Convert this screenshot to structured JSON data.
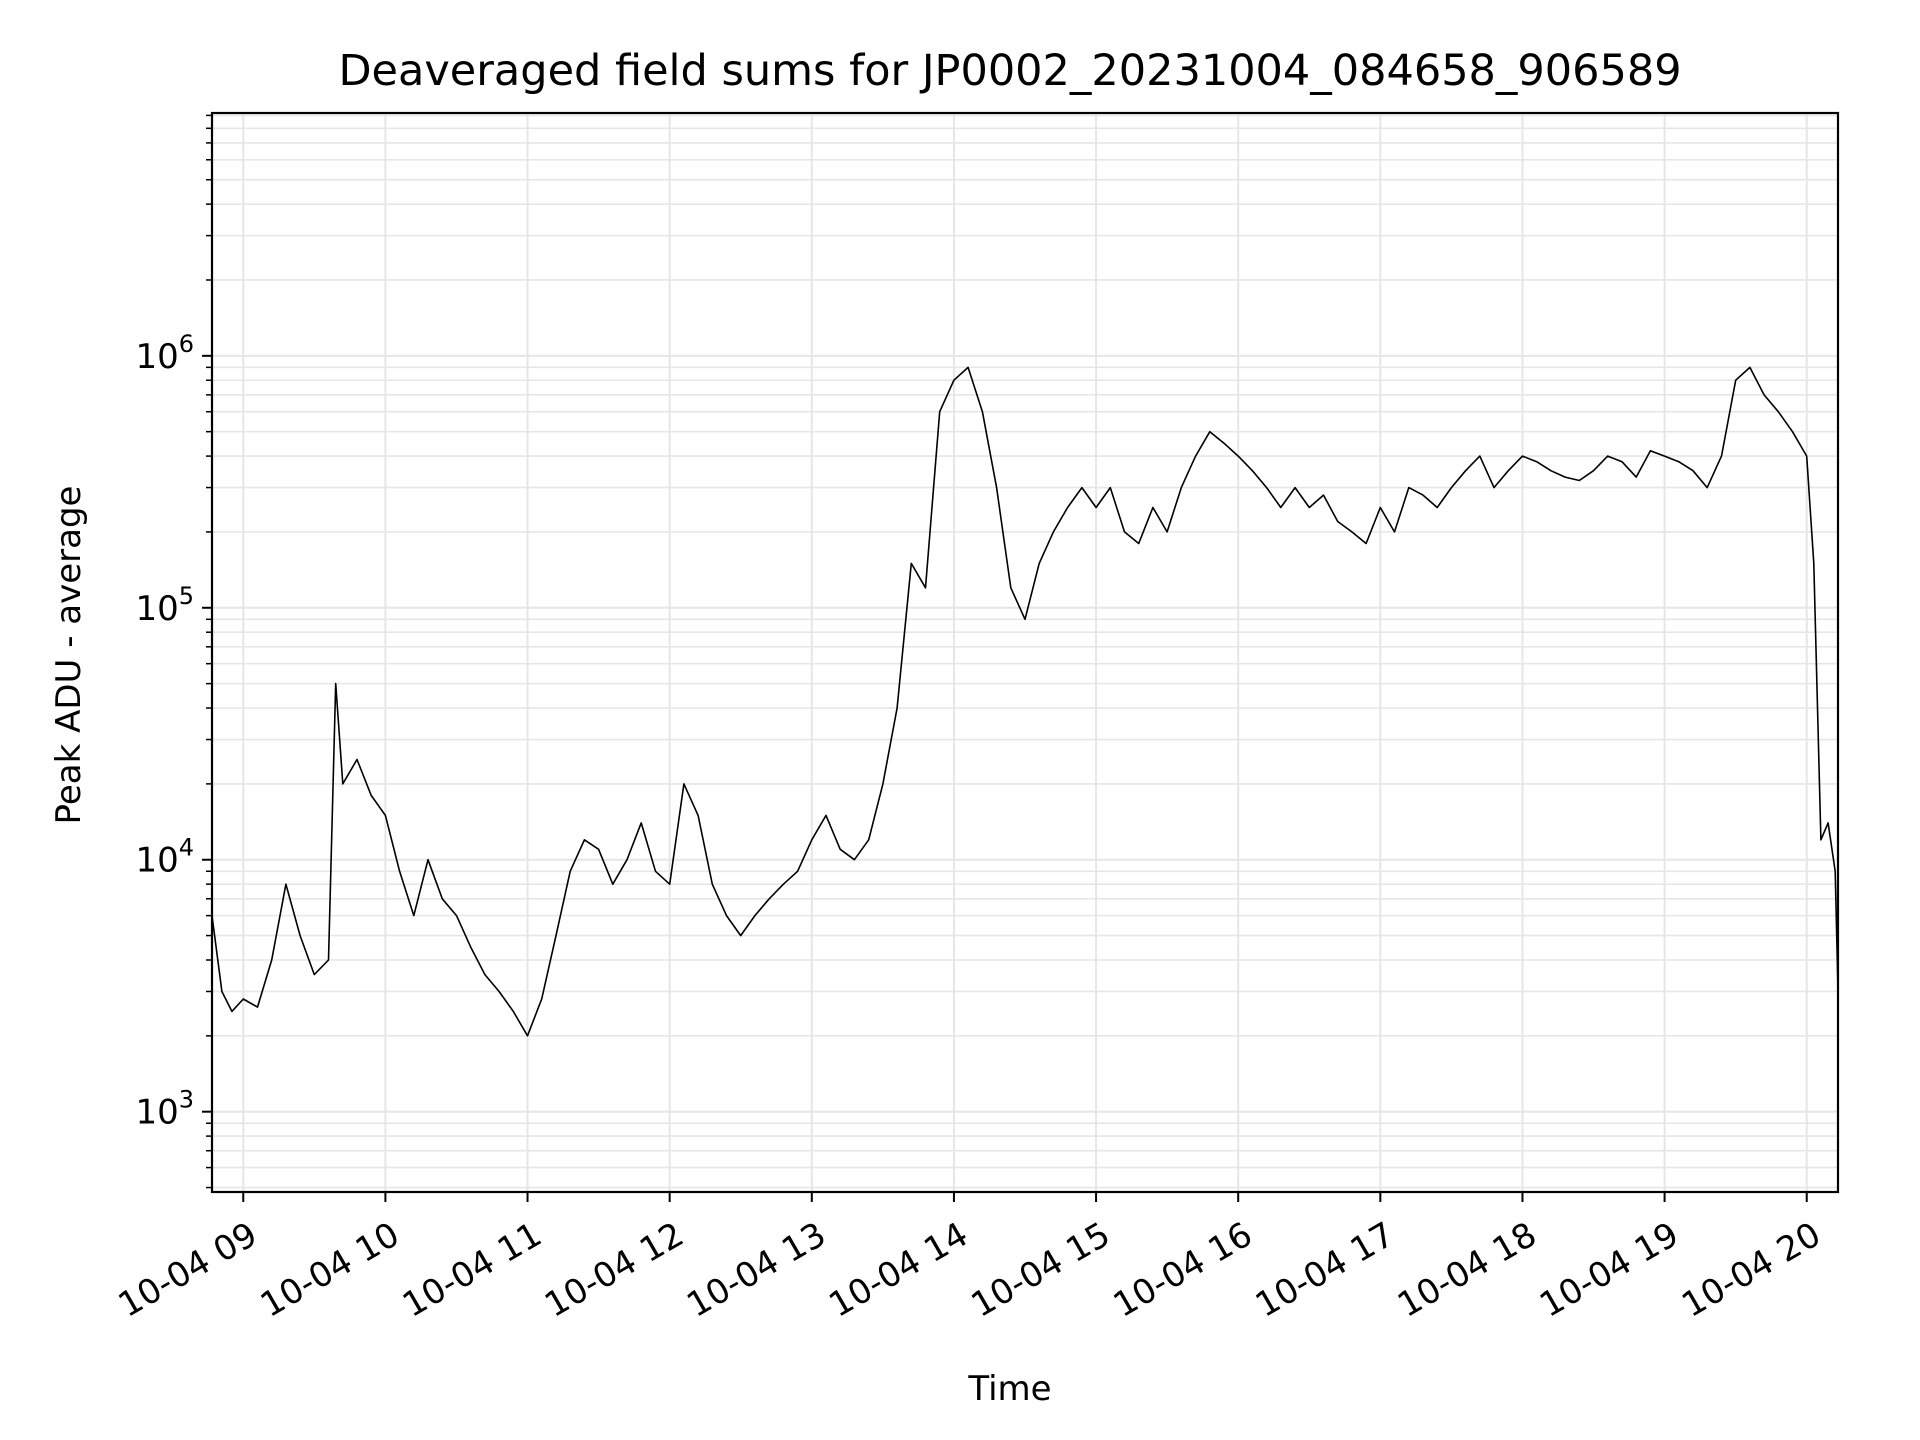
{
  "chart_data": {
    "type": "line",
    "title": "Deaveraged field sums for JP0002_20231004_084658_906589",
    "xlabel": "Time",
    "ylabel": "Peak ADU - average",
    "x_unit": "hour of 2023-10-04",
    "xlim": [
      8.78,
      20.22
    ],
    "ylim": [
      480,
      9200000
    ],
    "yscale": "log",
    "grid": true,
    "line_color": "#000000",
    "grid_color": "#e6e6e6",
    "x_ticks": [
      {
        "value": 9,
        "label": "10-04 09"
      },
      {
        "value": 10,
        "label": "10-04 10"
      },
      {
        "value": 11,
        "label": "10-04 11"
      },
      {
        "value": 12,
        "label": "10-04 12"
      },
      {
        "value": 13,
        "label": "10-04 13"
      },
      {
        "value": 14,
        "label": "10-04 14"
      },
      {
        "value": 15,
        "label": "10-04 15"
      },
      {
        "value": 16,
        "label": "10-04 16"
      },
      {
        "value": 17,
        "label": "10-04 17"
      },
      {
        "value": 18,
        "label": "10-04 18"
      },
      {
        "value": 19,
        "label": "10-04 19"
      },
      {
        "value": 20,
        "label": "10-04 20"
      }
    ],
    "y_ticks": [
      {
        "value": 1000,
        "base": "10",
        "exp": "3"
      },
      {
        "value": 10000,
        "base": "10",
        "exp": "4"
      },
      {
        "value": 100000,
        "base": "10",
        "exp": "5"
      },
      {
        "value": 1000000,
        "base": "10",
        "exp": "6"
      }
    ],
    "series": [
      {
        "x": [
          8.78,
          8.85,
          8.92,
          9.0,
          9.1,
          9.2,
          9.3,
          9.4,
          9.5,
          9.6,
          9.65,
          9.7,
          9.8,
          9.9,
          10.0,
          10.1,
          10.2,
          10.3,
          10.4,
          10.5,
          10.6,
          10.7,
          10.8,
          10.9,
          11.0,
          11.1,
          11.2,
          11.3,
          11.4,
          11.5,
          11.6,
          11.7,
          11.8,
          11.9,
          12.0,
          12.1,
          12.2,
          12.3,
          12.4,
          12.5,
          12.6,
          12.7,
          12.8,
          12.9,
          13.0,
          13.1,
          13.2,
          13.3,
          13.4,
          13.5,
          13.6,
          13.7,
          13.8,
          13.9,
          14.0,
          14.1,
          14.2,
          14.3,
          14.4,
          14.5,
          14.6,
          14.7,
          14.8,
          14.9,
          15.0,
          15.1,
          15.2,
          15.3,
          15.4,
          15.5,
          15.6,
          15.7,
          15.8,
          15.9,
          16.0,
          16.1,
          16.2,
          16.3,
          16.4,
          16.5,
          16.6,
          16.7,
          16.8,
          16.9,
          17.0,
          17.1,
          17.2,
          17.3,
          17.4,
          17.5,
          17.6,
          17.7,
          17.8,
          17.9,
          18.0,
          18.1,
          18.2,
          18.3,
          18.4,
          18.5,
          18.6,
          18.7,
          18.8,
          18.9,
          19.0,
          19.1,
          19.2,
          19.3,
          19.4,
          19.5,
          19.6,
          19.7,
          19.8,
          19.9,
          20.0,
          20.05,
          20.1,
          20.15,
          20.2,
          20.22
        ],
        "y": [
          6000,
          3000,
          2500,
          2800,
          2600,
          4000,
          8000,
          5000,
          3500,
          4000,
          50000,
          20000,
          25000,
          18000,
          15000,
          9000,
          6000,
          10000,
          7000,
          6000,
          4500,
          3500,
          3000,
          2500,
          2000,
          2800,
          5000,
          9000,
          12000,
          11000,
          8000,
          10000,
          14000,
          9000,
          8000,
          20000,
          15000,
          8000,
          6000,
          5000,
          6000,
          7000,
          8000,
          9000,
          12000,
          15000,
          11000,
          10000,
          12000,
          20000,
          40000,
          150000,
          120000,
          600000,
          800000,
          900000,
          600000,
          300000,
          120000,
          90000,
          150000,
          200000,
          250000,
          300000,
          250000,
          300000,
          200000,
          180000,
          250000,
          200000,
          300000,
          400000,
          500000,
          450000,
          400000,
          350000,
          300000,
          250000,
          300000,
          250000,
          280000,
          220000,
          200000,
          180000,
          250000,
          200000,
          300000,
          280000,
          250000,
          300000,
          350000,
          400000,
          300000,
          350000,
          400000,
          380000,
          350000,
          330000,
          320000,
          350000,
          400000,
          380000,
          330000,
          420000,
          400000,
          380000,
          350000,
          300000,
          400000,
          800000,
          900000,
          700000,
          600000,
          500000,
          400000,
          150000,
          12000,
          14000,
          9000,
          3000
        ]
      }
    ]
  }
}
